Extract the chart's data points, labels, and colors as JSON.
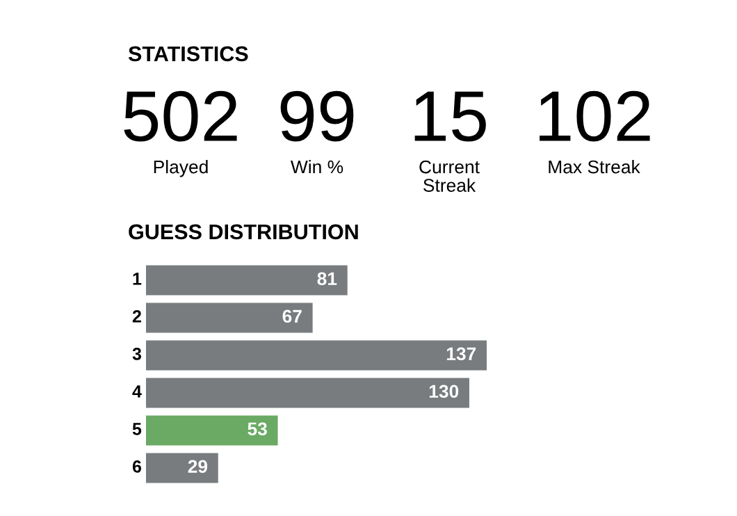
{
  "chart_data": [
    {
      "type": "other",
      "title": "STATISTICS",
      "categories": [
        "Played",
        "Win %",
        "Current\nStreak",
        "Max Streak"
      ],
      "values": [
        502,
        99,
        15,
        102
      ],
      "data_labels": true
    },
    {
      "type": "bar",
      "orientation": "horizontal",
      "title": "GUESS DISTRIBUTION",
      "categories": [
        "1",
        "2",
        "3",
        "4",
        "5",
        "6"
      ],
      "values": [
        81,
        67,
        137,
        130,
        53,
        29
      ],
      "colors": [
        "#787c7e",
        "#787c7e",
        "#787c7e",
        "#787c7e",
        "#6aaa64",
        "#787c7e"
      ],
      "data_labels": true
    }
  ]
}
